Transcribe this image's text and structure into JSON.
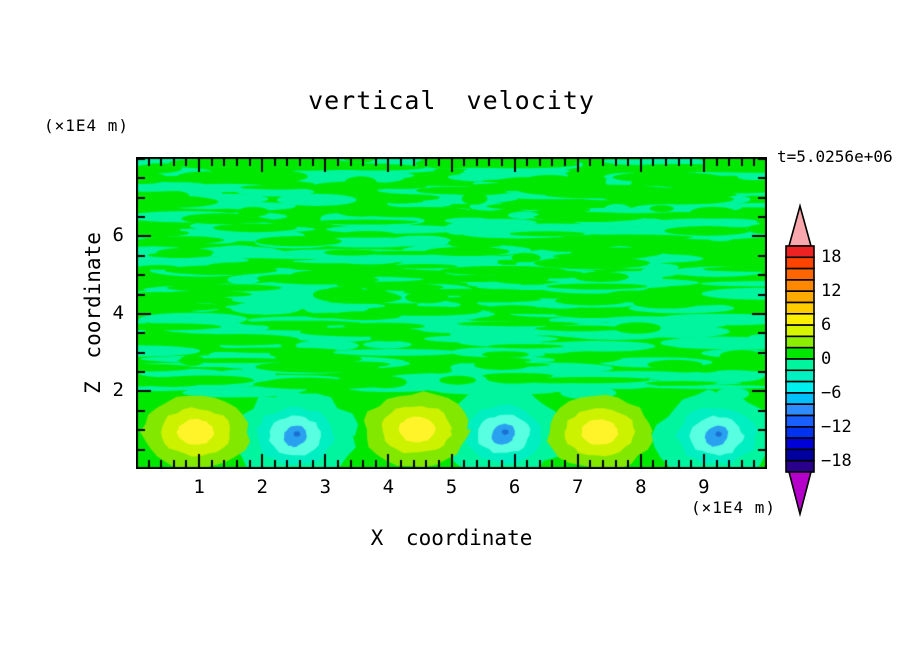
{
  "title": "vertical velocity",
  "time_label": "t=5.0256e+06",
  "chart_data": {
    "type": "filled-contour",
    "title": "vertical velocity",
    "time_annotation": "t=5.0256e+06",
    "x_axis": {
      "label": "X coordinate",
      "unit": "(×1E4 m)",
      "range": [
        0,
        10
      ],
      "major_tick_values": [
        1,
        2,
        3,
        4,
        5,
        6,
        7,
        8,
        9
      ],
      "major_tick_labels": [
        "1",
        "2",
        "3",
        "4",
        "5",
        "6",
        "7",
        "8",
        "9"
      ],
      "minor_tick_step": 0.2
    },
    "z_axis": {
      "label": "Z coordinate",
      "unit": "(×1E4 m)",
      "range": [
        0,
        8.05
      ],
      "major_tick_values": [
        2,
        4,
        6
      ],
      "major_tick_labels": [
        "2",
        "4",
        "6"
      ],
      "minor_tick_step": 0.5
    },
    "field": {
      "description": "vertical velocity field: weakly positive/negative mottled texture aloft, alternating strong updraft (yellow) and downdraft (blue) cells near the surface",
      "positive_background_color": "#00E800",
      "negative_background_color": "#00F59E",
      "texture": {
        "seed": 7,
        "negative_streaks": 300,
        "positive_streaks": 170
      },
      "updrafts": [
        {
          "x": 0.95,
          "z": 0.95
        },
        {
          "x": 4.45,
          "z": 1.02
        },
        {
          "x": 7.35,
          "z": 0.95
        }
      ],
      "updraft_rings": [
        {
          "color": "#82E800",
          "rx": 0.84,
          "ry": 0.95
        },
        {
          "color": "#CCF200",
          "rx": 0.56,
          "ry": 0.62
        },
        {
          "color": "#FFF42A",
          "rx": 0.29,
          "ry": 0.33
        }
      ],
      "downdrafts": [
        {
          "x": 2.52,
          "z": 0.85
        },
        {
          "x": 5.82,
          "z": 0.9
        },
        {
          "x": 9.2,
          "z": 0.85
        }
      ],
      "downdraft_halo": {
        "color": "#00F59E",
        "rx": 0.95,
        "ry": 1.15
      },
      "downdraft_rings": [
        {
          "color": "#00EFC2",
          "rx": 0.62,
          "ry": 0.74
        },
        {
          "color": "#58FFE0",
          "rx": 0.42,
          "ry": 0.5
        },
        {
          "color": "#2AA0F0",
          "rx": 0.19,
          "ry": 0.26,
          "rot": -0.55
        }
      ],
      "downdraft_core_speck": {
        "color": "#1B6FD0",
        "rx": 0.05,
        "ry": 0.07
      }
    },
    "colorbar": {
      "tick_labels": [
        "18",
        "12",
        "6",
        "0",
        "−6",
        "−12",
        "−18"
      ],
      "tick_values": [
        18,
        12,
        6,
        0,
        -6,
        -12,
        -18
      ],
      "segment_step": 2,
      "segment_top_value": 20,
      "segment_colors_top_to_bottom": [
        "#EE2222",
        "#FF4400",
        "#FF6600",
        "#FF8800",
        "#FFAA00",
        "#FFCC00",
        "#FFF000",
        "#D8F500",
        "#8CEE00",
        "#00E800",
        "#00F59E",
        "#00F0C2",
        "#00EFEF",
        "#00BFFF",
        "#2E8CFF",
        "#1A5FFF",
        "#0033F0",
        "#0000D8",
        "#0000A0",
        "#28008C"
      ],
      "over_arrow_color": "#F8A8AC",
      "under_arrow_color": "#B400C8"
    }
  }
}
